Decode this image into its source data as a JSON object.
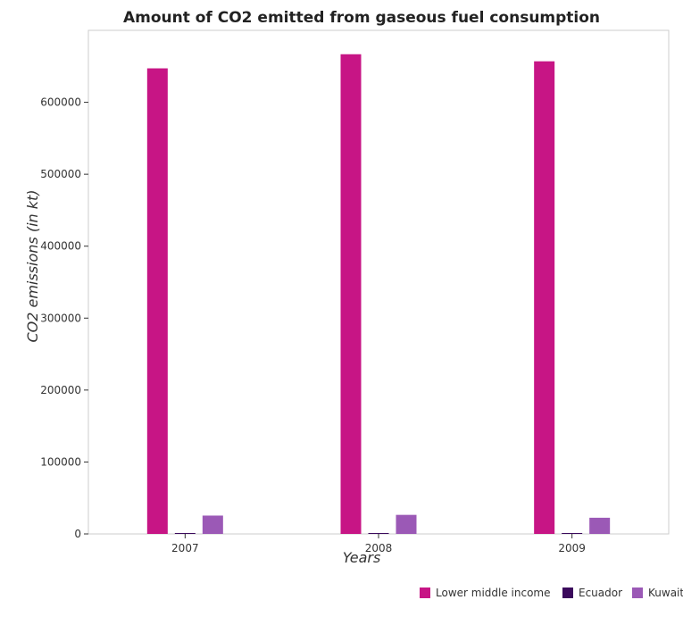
{
  "chart_data": {
    "type": "bar",
    "title": "Amount of CO2 emitted from gaseous fuel consumption",
    "xlabel": "Years",
    "ylabel": "CO2 emissions (in kt)",
    "categories": [
      "2007",
      "2008",
      "2009"
    ],
    "ylim": [
      0,
      700000
    ],
    "yticks": [
      0,
      100000,
      200000,
      300000,
      400000,
      500000,
      600000
    ],
    "ytick_labels": [
      "0",
      "100000",
      "200000",
      "300000",
      "400000",
      "500000",
      "600000"
    ],
    "grid": false,
    "legend_position": "bottom-right",
    "series": [
      {
        "name": "Lower middle income",
        "color": "#c71585",
        "values": [
          647200,
          666800,
          657000
        ]
      },
      {
        "name": "Ecuador",
        "color": "#3b0a5c",
        "values": [
          800,
          700,
          750
        ]
      },
      {
        "name": "Kuwait",
        "color": "#9b59b6",
        "values": [
          25500,
          26500,
          22500
        ]
      }
    ]
  }
}
